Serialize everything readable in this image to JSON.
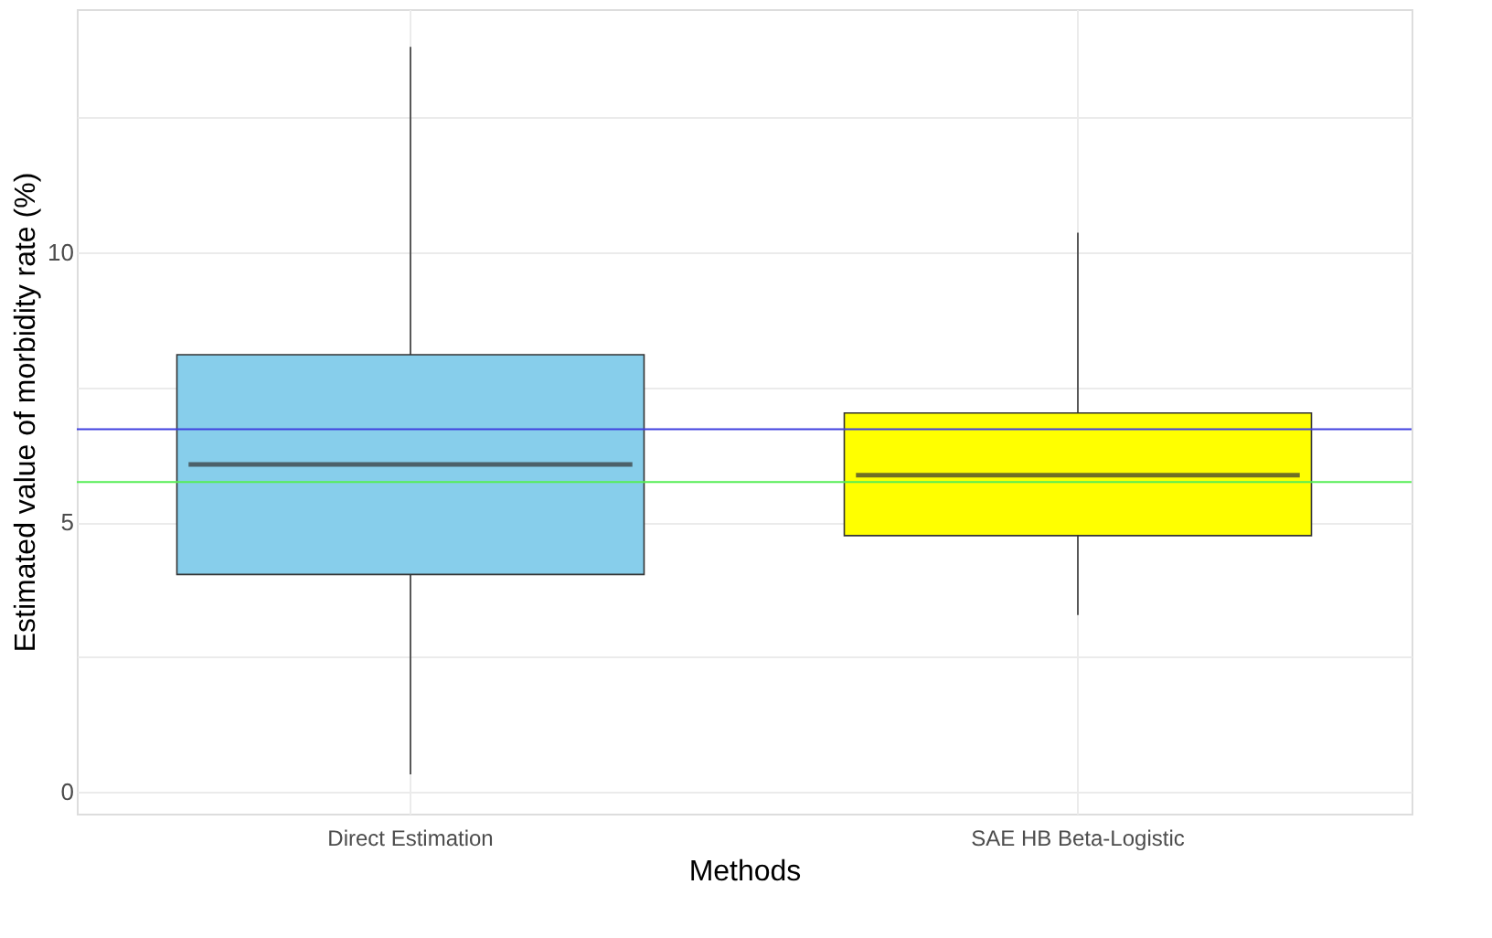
{
  "chart_data": {
    "type": "box",
    "xlabel": "Methods",
    "ylabel": "Estimated value of morbidity rate (%)",
    "categories": [
      "Direct Estimation",
      "SAE HB Beta-Logistic"
    ],
    "series": [
      {
        "color": "#87ceeb",
        "boxes": [
          {
            "low": 0.33,
            "q1": 4.03,
            "median": 6.07,
            "q3": 8.1,
            "high": 13.8
          },
          null
        ]
      },
      {
        "color": "#ffff00",
        "boxes": [
          null,
          {
            "low": 3.28,
            "q1": 4.75,
            "median": 5.87,
            "q3": 7.02,
            "high": 10.36
          }
        ]
      }
    ],
    "ylim": [
      -0.4,
      14.5
    ],
    "yticks": [
      0,
      {
        "value": 2.5,
        "label": null
      },
      5,
      {
        "value": 7.5,
        "label": null
      },
      10,
      {
        "value": 12.5,
        "label": null
      }
    ],
    "ref_lines": [
      {
        "axis": "y",
        "value": 6.72,
        "color": "#4040e0"
      },
      {
        "axis": "y",
        "value": 5.74,
        "color": "#55ee55"
      }
    ],
    "grid": true
  }
}
